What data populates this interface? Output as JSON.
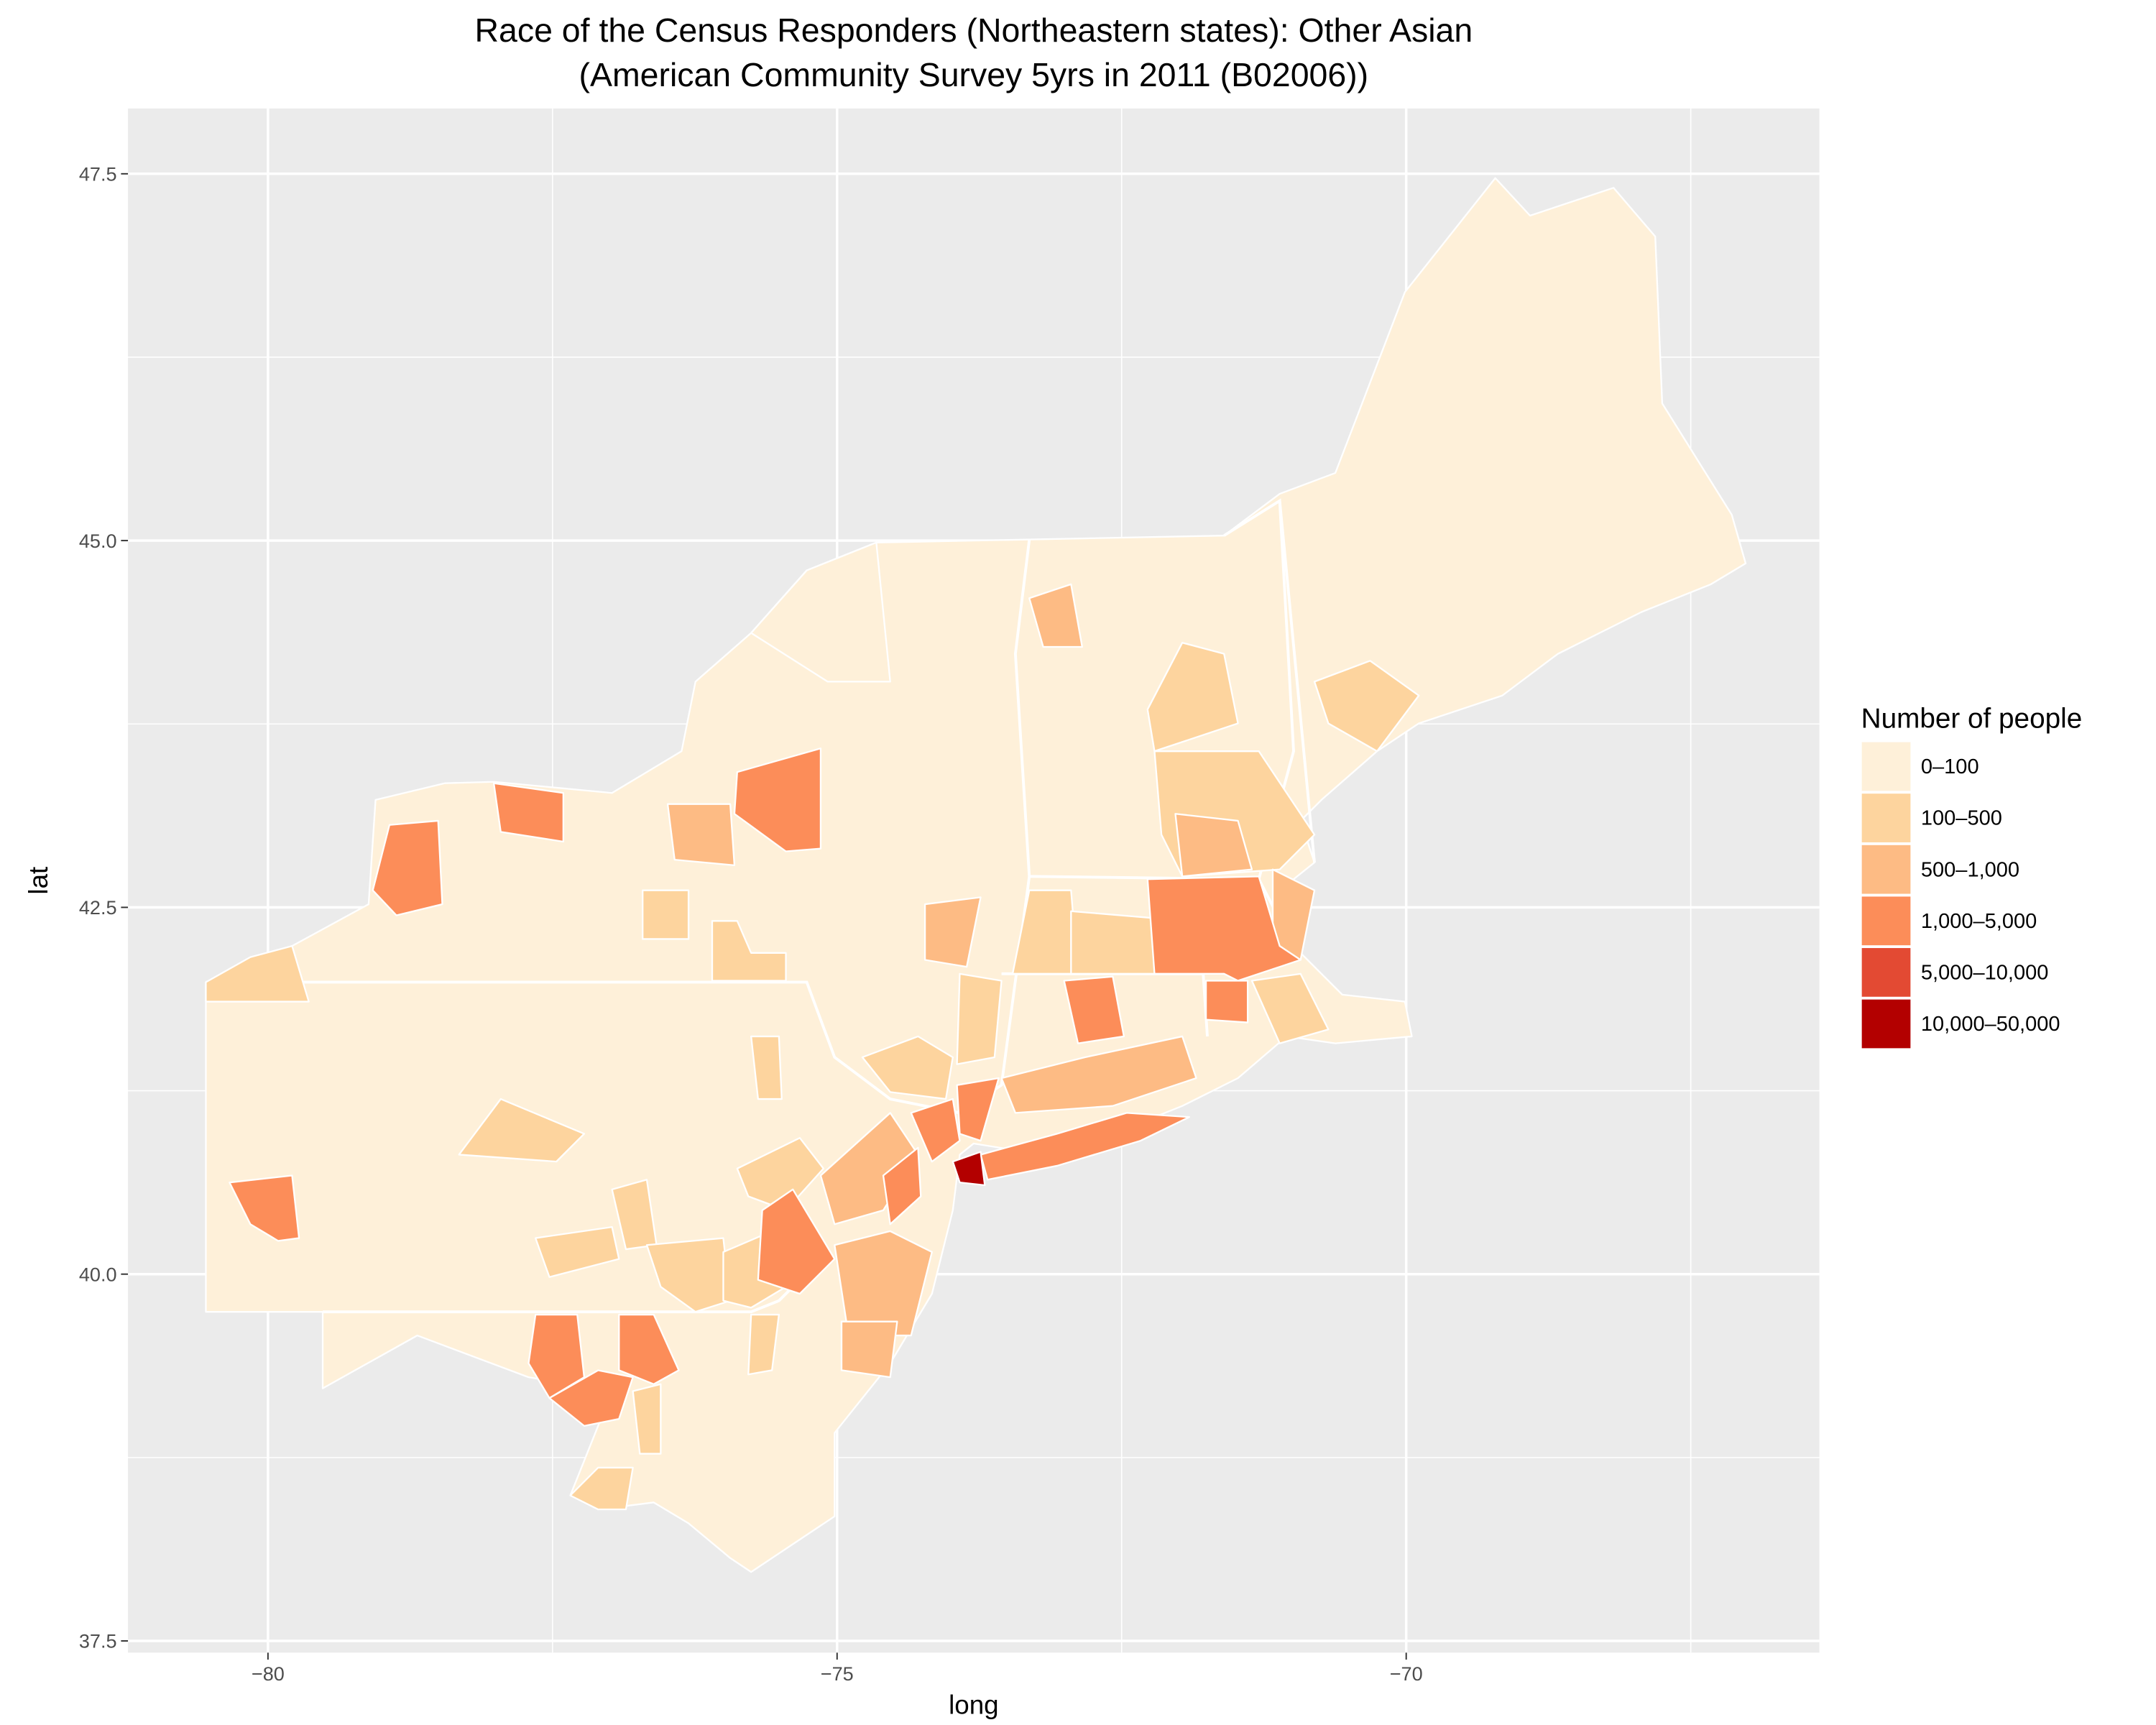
{
  "chart_data": {
    "type": "choropleth",
    "title": "Race of the Census Responders (Northeastern states): Other Asian",
    "subtitle": "(American Community Survey 5yrs in 2011 (B02006))",
    "x_label": "long",
    "y_label": "lat",
    "xlim": [
      -81.23,
      -66.37
    ],
    "ylim": [
      37.42,
      47.945
    ],
    "xticks": [
      {
        "value": -80,
        "label": "−80"
      },
      {
        "value": -75,
        "label": "−75"
      },
      {
        "value": -70,
        "label": "−70"
      }
    ],
    "yticks": [
      {
        "value": 37.5,
        "label": "37.5"
      },
      {
        "value": 40,
        "label": "40.0"
      },
      {
        "value": 42.5,
        "label": "42.5"
      },
      {
        "value": 45,
        "label": "45.0"
      },
      {
        "value": 47.5,
        "label": "47.5"
      }
    ],
    "x_minor_grid": [
      -77.5,
      -72.5,
      -67.5
    ],
    "y_minor_grid": [
      38.75,
      41.25,
      43.75,
      46.25
    ],
    "grid": true,
    "legend": {
      "title": "Number of people",
      "labels": [
        "0–100",
        "100–500",
        "500–1,000",
        "1,000–5,000",
        "5,000–10,000",
        "10,000–50,000"
      ],
      "colors": [
        "#fef0d9",
        "#fdd49e",
        "#fdbb84",
        "#fc8d59",
        "#e34a33",
        "#b30000"
      ]
    }
  }
}
